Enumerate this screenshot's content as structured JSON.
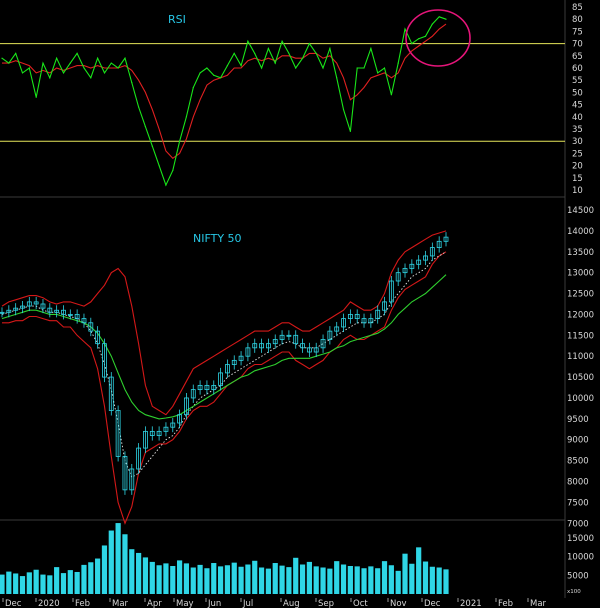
{
  "colors": {
    "background": "#000000",
    "rsi_line": "#19e619",
    "rsi_signal": "#e02020",
    "rsi_levels": "#e6e65a",
    "price_candles": "#2fd6e6",
    "bollinger": "#d41818",
    "moving_average": "#2fcf2f",
    "dotted_average": "#e8e8e8",
    "highlight_circle": "#e6157a",
    "title_text": "#27c7e6",
    "axis_text": "#d8d8d8",
    "volume_bars": "#2fd6e6"
  },
  "chart_data": [
    {
      "type": "line",
      "title": "RSI",
      "ylim": [
        5,
        88
      ],
      "y_ticks": [
        "85",
        "80",
        "75",
        "70",
        "65",
        "60",
        "55",
        "50",
        "45",
        "40",
        "35",
        "30",
        "25",
        "20",
        "15",
        "10"
      ],
      "reference_lines": [
        70,
        30
      ],
      "x_tick_labels": [
        "Dec",
        "2020",
        "Feb",
        "Mar",
        "Apr",
        "May",
        "Jun",
        "Jul",
        "Aug",
        "Sep",
        "Oct",
        "Nov",
        "Dec",
        "2021",
        "Feb",
        "Mar"
      ],
      "annotation": "circle around latest RSI values (~80)",
      "series": [
        {
          "values": [
            64,
            62,
            66,
            58,
            60,
            48,
            62,
            56,
            64,
            58,
            62,
            66,
            60,
            56,
            64,
            58,
            62,
            60,
            64,
            54,
            44,
            36,
            28,
            20,
            12,
            18,
            30,
            40,
            52,
            58,
            60,
            57,
            56,
            61,
            66,
            61,
            71,
            66,
            60,
            68,
            62,
            71,
            66,
            60,
            64,
            70,
            66,
            60,
            68,
            56,
            43,
            34,
            60,
            60,
            68,
            58,
            60,
            49,
            62,
            76,
            70,
            72,
            73,
            78,
            81,
            80
          ]
        },
        {
          "values": [
            62,
            62,
            63,
            62,
            61,
            58,
            59,
            58,
            60,
            59,
            60,
            61,
            61,
            60,
            61,
            60,
            60,
            60,
            61,
            59,
            55,
            50,
            43,
            35,
            26,
            23,
            25,
            31,
            40,
            47,
            53,
            55,
            56,
            57,
            60,
            60,
            63,
            64,
            63,
            64,
            63,
            65,
            65,
            64,
            64,
            66,
            66,
            64,
            65,
            62,
            56,
            47,
            49,
            52,
            56,
            57,
            58,
            56,
            58,
            64,
            67,
            69,
            71,
            73,
            76,
            78
          ]
        }
      ]
    },
    {
      "type": "bar",
      "title": "NIFTY 50",
      "y_ticks": [
        "14500",
        "14000",
        "13500",
        "13000",
        "12500",
        "12000",
        "11500",
        "11000",
        "10500",
        "10000",
        "9500",
        "9000",
        "8500",
        "8000",
        "7500",
        "7000"
      ],
      "ylim": [
        6600,
        14500
      ],
      "x_tick_labels": [
        "Dec",
        "2020",
        "Feb",
        "Mar",
        "Apr",
        "May",
        "Jun",
        "Jul",
        "Aug",
        "Sep",
        "Oct",
        "Nov",
        "Dec",
        "2021",
        "Feb",
        "Mar"
      ],
      "series": [
        {
          "name": "close",
          "values": [
            12050,
            12100,
            12150,
            12200,
            12300,
            12250,
            12150,
            12050,
            12100,
            12000,
            12000,
            11900,
            11800,
            11600,
            11300,
            10500,
            9700,
            8600,
            7800,
            8300,
            8800,
            9200,
            9100,
            9200,
            9300,
            9400,
            9600,
            10000,
            10200,
            10300,
            10200,
            10300,
            10600,
            10800,
            10900,
            11000,
            11200,
            11300,
            11200,
            11300,
            11400,
            11500,
            11500,
            11300,
            11200,
            11100,
            11200,
            11400,
            11600,
            11700,
            11900,
            12000,
            11900,
            11800,
            11900,
            12100,
            12300,
            12800,
            13000,
            13100,
            13200,
            13300,
            13400,
            13600,
            13750,
            13850
          ]
        },
        {
          "name": "upper band",
          "values": [
            12200,
            12300,
            12350,
            12400,
            12450,
            12450,
            12400,
            12300,
            12250,
            12300,
            12300,
            12250,
            12200,
            12300,
            12500,
            12700,
            13000,
            13100,
            12900,
            12200,
            11300,
            10300,
            9800,
            9700,
            9600,
            9800,
            10100,
            10400,
            10700,
            10800,
            10900,
            11000,
            11100,
            11200,
            11300,
            11400,
            11500,
            11600,
            11600,
            11600,
            11700,
            11800,
            11800,
            11700,
            11600,
            11600,
            11700,
            11800,
            11900,
            12000,
            12100,
            12300,
            12200,
            12100,
            12100,
            12200,
            12500,
            13000,
            13300,
            13500,
            13600,
            13700,
            13800,
            13900,
            13950,
            14000
          ]
        },
        {
          "name": "lower band",
          "values": [
            11800,
            11800,
            11850,
            11850,
            11950,
            11950,
            11900,
            11850,
            11850,
            11700,
            11700,
            11500,
            11350,
            11200,
            10700,
            9800,
            8600,
            7500,
            7000,
            7400,
            8200,
            8700,
            8800,
            8900,
            8900,
            9000,
            9200,
            9500,
            9700,
            9800,
            9800,
            9900,
            10100,
            10300,
            10400,
            10500,
            10700,
            10800,
            10800,
            10900,
            11000,
            11100,
            11100,
            10900,
            10800,
            10700,
            10800,
            10900,
            11100,
            11200,
            11400,
            11500,
            11400,
            11400,
            11500,
            11600,
            11700,
            12100,
            12400,
            12600,
            12700,
            12800,
            12900,
            13200,
            13400,
            13500
          ]
        },
        {
          "name": "moving average",
          "values": [
            11900,
            11950,
            12000,
            12050,
            12100,
            12100,
            12050,
            12000,
            12000,
            11950,
            11900,
            11850,
            11800,
            11700,
            11550,
            11300,
            11000,
            10600,
            10200,
            9900,
            9700,
            9600,
            9550,
            9500,
            9520,
            9550,
            9600,
            9700,
            9800,
            9900,
            10000,
            10100,
            10200,
            10300,
            10400,
            10500,
            10550,
            10650,
            10700,
            10750,
            10800,
            10900,
            10950,
            10950,
            10950,
            10950,
            11000,
            11050,
            11100,
            11200,
            11250,
            11350,
            11400,
            11450,
            11500,
            11550,
            11650,
            11800,
            12000,
            12150,
            12300,
            12400,
            12500,
            12650,
            12800,
            12950
          ]
        },
        {
          "name": "dotted average",
          "values": [
            12000,
            12050,
            12100,
            12150,
            12200,
            12200,
            12100,
            12050,
            12050,
            12000,
            11950,
            11900,
            11800,
            11600,
            11300,
            10800,
            10200,
            9400,
            8500,
            8100,
            8200,
            8400,
            8600,
            8800,
            9000,
            9100,
            9300,
            9600,
            9800,
            10000,
            10100,
            10200,
            10300,
            10500,
            10600,
            10700,
            10800,
            10900,
            11000,
            11100,
            11200,
            11300,
            11350,
            11300,
            11200,
            11200,
            11200,
            11300,
            11400,
            11500,
            11600,
            11700,
            11800,
            11800,
            11800,
            11900,
            12000,
            12300,
            12500,
            12700,
            12900,
            13000,
            13100,
            13300,
            13400,
            13500
          ]
        }
      ]
    },
    {
      "type": "bar",
      "title": "",
      "y_ticks": [
        "15000",
        "10000",
        "5000"
      ],
      "unit_label": "x100",
      "x_tick_labels": [
        "Dec",
        "2020",
        "Feb",
        "Mar",
        "Apr",
        "May",
        "Jun",
        "Jul",
        "Aug",
        "Sep",
        "Oct",
        "Nov",
        "Dec",
        "2021",
        "Feb",
        "Mar"
      ],
      "series": [
        {
          "values": [
            5200,
            6000,
            5500,
            4800,
            5800,
            6500,
            5200,
            5000,
            7200,
            5600,
            6400,
            5900,
            7800,
            8500,
            9500,
            13000,
            17000,
            19000,
            16000,
            12000,
            11000,
            9800,
            8600,
            7700,
            8200,
            7500,
            9000,
            8200,
            7100,
            7800,
            6900,
            8300,
            7400,
            7700,
            8400,
            7300,
            7900,
            8900,
            7100,
            6800,
            8300,
            7600,
            7200,
            9700,
            7900,
            8600,
            7400,
            7100,
            6800,
            8800,
            7900,
            7500,
            7400,
            6900,
            7400,
            6900,
            8800,
            7700,
            6200,
            10800,
            8100,
            12500,
            8700,
            7300,
            7100,
            6600
          ]
        }
      ]
    }
  ]
}
